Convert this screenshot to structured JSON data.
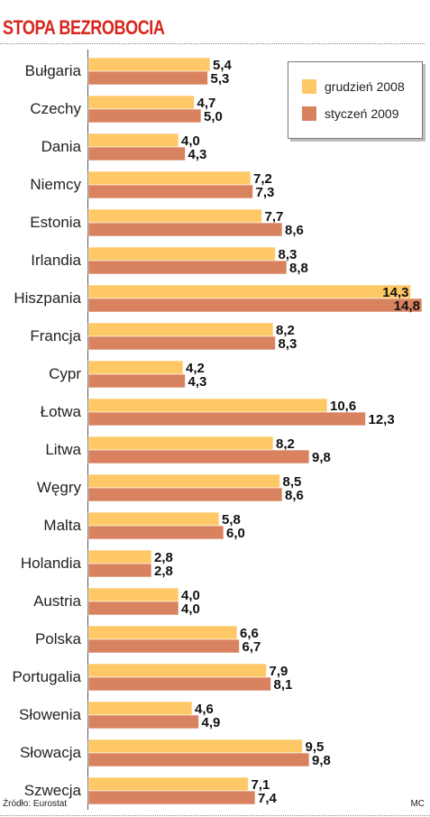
{
  "title": "STOPA BEZROBOCIA",
  "source": "Źródło: Eurostat",
  "credit": "MC",
  "colors": {
    "series1": "#fec867",
    "series2": "#d9825f",
    "title": "#d8261c"
  },
  "chart_data": {
    "type": "bar",
    "orientation": "horizontal",
    "title": "STOPA BEZROBOCIA",
    "categories": [
      "Bułgaria",
      "Czechy",
      "Dania",
      "Niemcy",
      "Estonia",
      "Irlandia",
      "Hiszpania",
      "Francja",
      "Cypr",
      "Łotwa",
      "Litwa",
      "Węgry",
      "Malta",
      "Holandia",
      "Austria",
      "Polska",
      "Portugalia",
      "Słowenia",
      "Słowacja",
      "Szwecja"
    ],
    "series": [
      {
        "name": "grudzień 2008",
        "values": [
          5.4,
          4.7,
          4.0,
          7.2,
          7.7,
          8.3,
          14.3,
          8.2,
          4.2,
          10.6,
          8.2,
          8.5,
          5.8,
          2.8,
          4.0,
          6.6,
          7.9,
          4.6,
          9.5,
          7.1
        ],
        "labels": [
          "5,4",
          "4,7",
          "4,0",
          "7,2",
          "7,7",
          "8,3",
          "14,3",
          "8,2",
          "4,2",
          "10,6",
          "8,2",
          "8,5",
          "5,8",
          "2,8",
          "4,0",
          "6,6",
          "7,9",
          "4,6",
          "9,5",
          "7,1"
        ]
      },
      {
        "name": "styczeń 2009",
        "values": [
          5.3,
          5.0,
          4.3,
          7.3,
          8.6,
          8.8,
          14.8,
          8.3,
          4.3,
          12.3,
          9.8,
          8.6,
          6.0,
          2.8,
          4.0,
          6.7,
          8.1,
          4.9,
          9.8,
          7.4
        ],
        "labels": [
          "5,3",
          "5,0",
          "4,3",
          "7,3",
          "8,6",
          "8,8",
          "14,8",
          "8,3",
          "4,3",
          "12,3",
          "9,8",
          "8,6",
          "6,0",
          "2,8",
          "4,0",
          "6,7",
          "8,1",
          "4,9",
          "9,8",
          "7,4"
        ]
      }
    ],
    "xlim": [
      0,
      14.8
    ],
    "grid": false,
    "legend_position": "top-right"
  }
}
